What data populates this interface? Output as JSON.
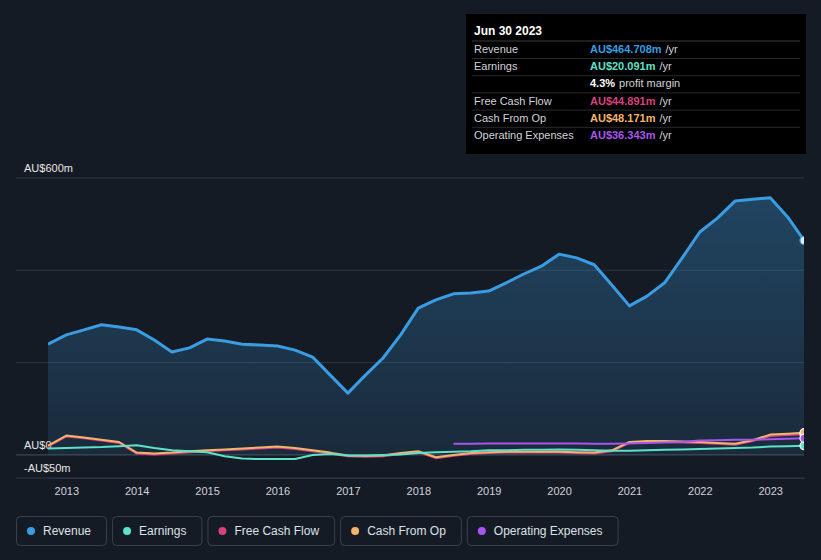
{
  "chart_data": {
    "type": "line",
    "x": [
      2012.74,
      2013,
      2013.25,
      2013.5,
      2013.75,
      2014,
      2014.25,
      2014.5,
      2014.75,
      2015,
      2015.25,
      2015.5,
      2015.75,
      2016,
      2016.25,
      2016.5,
      2016.75,
      2017,
      2017.25,
      2017.5,
      2017.75,
      2018,
      2018.25,
      2018.5,
      2018.75,
      2019,
      2019.25,
      2019.5,
      2019.75,
      2020,
      2020.25,
      2020.5,
      2020.75,
      2021,
      2021.25,
      2021.5,
      2021.75,
      2022,
      2022.25,
      2022.5,
      2022.75,
      2023,
      2023.25,
      2023.48
    ],
    "xlim": [
      2012.74,
      2023.48
    ],
    "xticks": [
      2013,
      2014,
      2015,
      2016,
      2017,
      2018,
      2019,
      2020,
      2021,
      2022,
      2023
    ],
    "ylim": [
      -50,
      600
    ],
    "yticks": [
      {
        "value": -50,
        "label": "-AU$50m"
      },
      {
        "value": 0,
        "label": "AU$0"
      },
      {
        "value": 200,
        "label": null
      },
      {
        "value": 400,
        "label": null
      },
      {
        "value": 600,
        "label": "AU$600m"
      }
    ],
    "grid": true,
    "legend": "bottom-left",
    "series": [
      {
        "name": "Revenue",
        "color": "#3a9ce2",
        "type": "area",
        "values": [
          240,
          260,
          271,
          282,
          277,
          271,
          249,
          223,
          232,
          251,
          247,
          240,
          238,
          236,
          227,
          212,
          173,
          134,
          173,
          210,
          260,
          318,
          336,
          349,
          351,
          355,
          373,
          392,
          409,
          435,
          427,
          412,
          368,
          323,
          344,
          373,
          427,
          483,
          513,
          550,
          554,
          557,
          515,
          464.708
        ]
      },
      {
        "name": "Earnings",
        "color": "#5fe0c8",
        "type": "line",
        "values": [
          14,
          15,
          16,
          17,
          19,
          21,
          15,
          10,
          8,
          6,
          -3,
          -8,
          -9,
          -9,
          -9,
          0,
          2,
          -1,
          -1,
          0,
          1,
          4,
          6,
          7,
          8,
          10,
          10,
          11,
          11,
          12,
          11,
          10,
          9,
          9,
          10,
          11,
          12,
          13,
          14,
          15,
          16,
          18,
          19,
          20.091
        ]
      },
      {
        "name": "Free Cash Flow",
        "color": "#d6417f",
        "type": "line",
        "values": [
          18,
          40,
          36,
          31,
          26,
          3,
          1,
          3,
          6,
          8,
          10,
          12,
          14,
          16,
          13,
          8,
          3,
          -3,
          -4,
          -3,
          2,
          6,
          -7,
          -2,
          2,
          4,
          5,
          5,
          5,
          5,
          4,
          3,
          8,
          26,
          28,
          28,
          27,
          26,
          24,
          22,
          30,
          41,
          43,
          44.891
        ]
      },
      {
        "name": "Cash From Op",
        "color": "#f2b46c",
        "type": "line",
        "values": [
          20,
          42,
          38,
          33,
          28,
          5,
          3,
          5,
          8,
          10,
          12,
          14,
          16,
          18,
          15,
          10,
          5,
          -1,
          -2,
          -1,
          4,
          8,
          -5,
          0,
          4,
          6,
          7,
          7,
          7,
          7,
          6,
          5,
          10,
          28,
          30,
          30,
          29,
          28,
          26,
          24,
          32,
          44,
          46,
          48.171
        ]
      },
      {
        "name": "Operating Expenses",
        "color": "#a855f0",
        "type": "line",
        "values": [
          null,
          null,
          null,
          null,
          null,
          null,
          null,
          null,
          null,
          null,
          null,
          null,
          null,
          null,
          null,
          null,
          null,
          null,
          null,
          null,
          null,
          null,
          null,
          24,
          24,
          25,
          25,
          25,
          25,
          25,
          25,
          24,
          24,
          25,
          26,
          27,
          28,
          31,
          32,
          33,
          33,
          34,
          35,
          36.343
        ]
      }
    ],
    "tooltip": {
      "title": "Jun 30 2023",
      "rows": [
        {
          "label": "Revenue",
          "value": "AU$464.708m",
          "unit": "/yr"
        },
        {
          "label": "Earnings",
          "value": "AU$20.091m",
          "unit": "/yr"
        },
        {
          "value": "4.3%",
          "unit": "profit margin"
        },
        {
          "label": "Free Cash Flow",
          "value": "AU$44.891m",
          "unit": "/yr"
        },
        {
          "label": "Cash From Op",
          "value": "AU$48.171m",
          "unit": "/yr"
        },
        {
          "label": "Operating Expenses",
          "value": "AU$36.343m",
          "unit": "/yr"
        }
      ]
    }
  }
}
